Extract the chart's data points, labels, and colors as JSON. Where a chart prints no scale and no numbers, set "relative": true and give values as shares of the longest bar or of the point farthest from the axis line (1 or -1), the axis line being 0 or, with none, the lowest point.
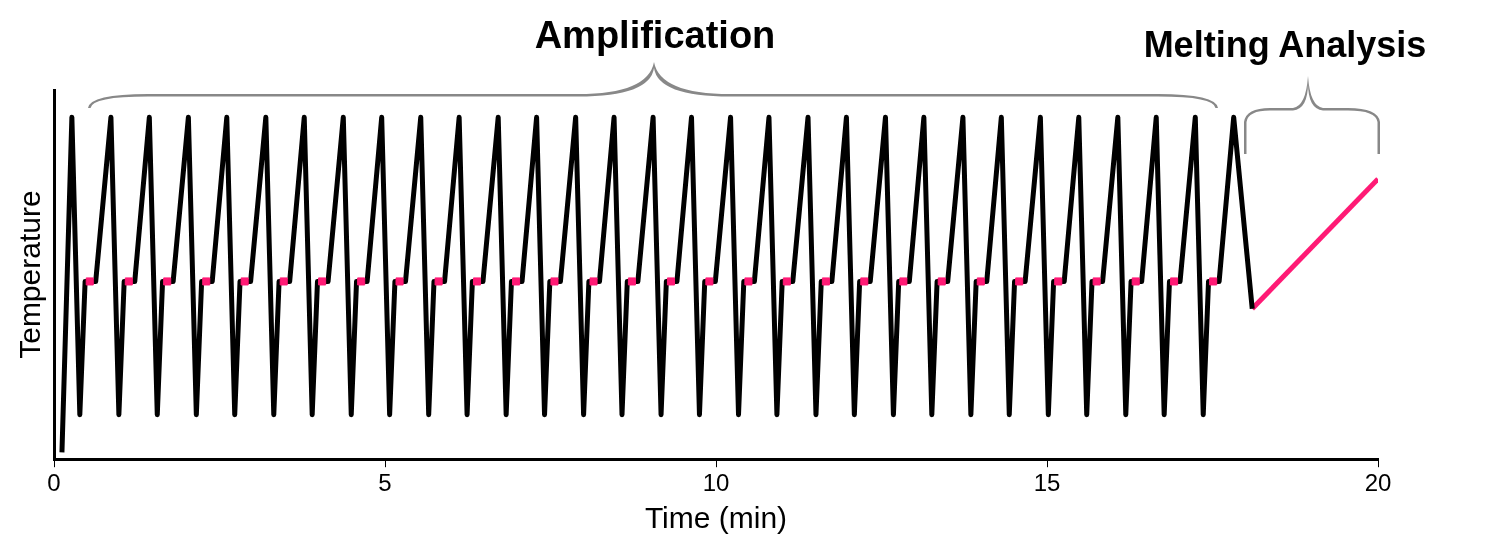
{
  "chart_data": {
    "type": "line",
    "relative": true,
    "xlabel": "Time (min)",
    "ylabel": "Temperature",
    "annotations": [
      "Amplification",
      "Melting Analysis"
    ],
    "xlim": [
      0,
      20
    ],
    "xticks": [
      0,
      5,
      10,
      15,
      20
    ],
    "grid": false,
    "legend": false,
    "series": [
      {
        "type": "line",
        "color": "#000000",
        "marker": "none",
        "x": [
          0.12,
          0.27,
          0.39,
          0.47,
          0.63,
          0.86,
          0.98,
          1.06,
          1.22,
          1.44,
          1.56,
          1.64,
          1.8,
          2.03,
          2.15,
          2.23,
          2.39,
          2.61,
          2.73,
          2.81,
          2.97,
          3.2,
          3.32,
          3.4,
          3.56,
          3.78,
          3.9,
          3.98,
          4.14,
          4.37,
          4.49,
          4.57,
          4.73,
          4.95,
          5.07,
          5.15,
          5.31,
          5.54,
          5.66,
          5.74,
          5.9,
          6.12,
          6.24,
          6.32,
          6.48,
          6.71,
          6.83,
          6.91,
          7.07,
          7.29,
          7.41,
          7.49,
          7.65,
          7.88,
          8,
          8.08,
          8.24,
          8.46,
          8.58,
          8.66,
          8.82,
          9.05,
          9.17,
          9.25,
          9.41,
          9.63,
          9.75,
          9.83,
          9.99,
          10.22,
          10.34,
          10.42,
          10.58,
          10.8,
          10.92,
          11,
          11.16,
          11.39,
          11.51,
          11.59,
          11.75,
          11.97,
          12.09,
          12.17,
          12.33,
          12.56,
          12.68,
          12.76,
          12.92,
          13.14,
          13.26,
          13.34,
          13.5,
          13.73,
          13.85,
          13.93,
          14.09,
          14.31,
          14.43,
          14.51,
          14.67,
          14.9,
          15.02,
          15.1,
          15.26,
          15.48,
          15.6,
          15.68,
          15.84,
          16.07,
          16.19,
          16.27,
          16.43,
          16.65,
          16.77,
          16.85,
          17.01,
          17.24,
          17.36,
          17.44,
          17.6,
          17.82,
          18.1
        ],
        "values": [
          0.02,
          1,
          0.13,
          0.52,
          0.52,
          1,
          0.13,
          0.52,
          0.52,
          1,
          0.13,
          0.52,
          0.52,
          1,
          0.13,
          0.52,
          0.52,
          1,
          0.13,
          0.52,
          0.52,
          1,
          0.13,
          0.52,
          0.52,
          1,
          0.13,
          0.52,
          0.52,
          1,
          0.13,
          0.52,
          0.52,
          1,
          0.13,
          0.52,
          0.52,
          1,
          0.13,
          0.52,
          0.52,
          1,
          0.13,
          0.52,
          0.52,
          1,
          0.13,
          0.52,
          0.52,
          1,
          0.13,
          0.52,
          0.52,
          1,
          0.13,
          0.52,
          0.52,
          1,
          0.13,
          0.52,
          0.52,
          1,
          0.13,
          0.52,
          0.52,
          1,
          0.13,
          0.52,
          0.52,
          1,
          0.13,
          0.52,
          0.52,
          1,
          0.13,
          0.52,
          0.52,
          1,
          0.13,
          0.52,
          0.52,
          1,
          0.13,
          0.52,
          0.52,
          1,
          0.13,
          0.52,
          0.52,
          1,
          0.13,
          0.52,
          0.52,
          1,
          0.13,
          0.52,
          0.52,
          1,
          0.13,
          0.52,
          0.52,
          1,
          0.13,
          0.52,
          0.52,
          1,
          0.13,
          0.52,
          0.52,
          1,
          0.13,
          0.52,
          0.52,
          1,
          0.13,
          0.52,
          0.52,
          1,
          0.13,
          0.52,
          0.52,
          1,
          0.44
        ]
      },
      {
        "type": "line",
        "color": "#ff1a75",
        "marker": "none",
        "x": [
          18.1,
          20
        ],
        "values": [
          0.44,
          0.82
        ]
      },
      {
        "type": "scatter",
        "color": "#ff1a75",
        "marker": "square",
        "x": [
          0.54,
          1.13,
          1.71,
          2.3,
          2.88,
          3.47,
          4.05,
          4.64,
          5.22,
          5.81,
          6.39,
          6.98,
          7.56,
          8.15,
          8.73,
          9.32,
          9.9,
          10.49,
          11.07,
          11.66,
          12.24,
          12.83,
          13.41,
          14,
          14.58,
          15.17,
          15.75,
          16.34,
          16.92,
          17.51
        ],
        "values": [
          0.52,
          0.52,
          0.52,
          0.52,
          0.52,
          0.52,
          0.52,
          0.52,
          0.52,
          0.52,
          0.52,
          0.52,
          0.52,
          0.52,
          0.52,
          0.52,
          0.52,
          0.52,
          0.52,
          0.52,
          0.52,
          0.52,
          0.52,
          0.52,
          0.52,
          0.52,
          0.52,
          0.52,
          0.52,
          0.52
        ]
      }
    ]
  }
}
